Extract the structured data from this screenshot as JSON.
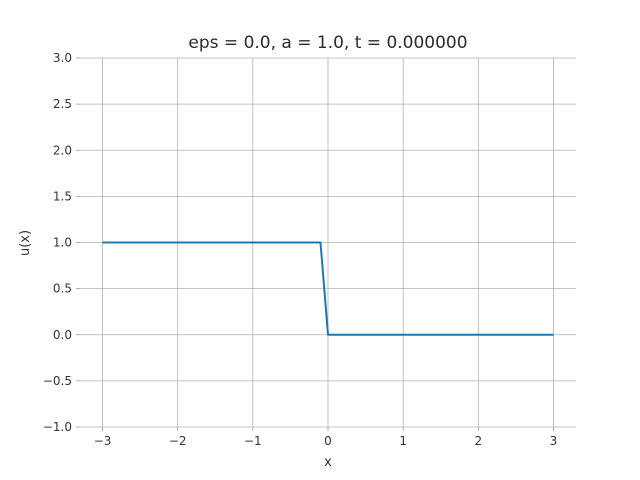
{
  "chart_data": {
    "type": "line",
    "title": "eps = 0.0, a = 1.0, t = 0.000000",
    "xlabel": "x",
    "ylabel": "u(x)",
    "xlim": [
      -3.3,
      3.3
    ],
    "ylim": [
      -1.0,
      3.0
    ],
    "xticks": [
      -3,
      -2,
      -1,
      0,
      1,
      2,
      3
    ],
    "xtick_labels": [
      "−3",
      "−2",
      "−1",
      "0",
      "1",
      "2",
      "3"
    ],
    "yticks": [
      -1.0,
      -0.5,
      0.0,
      0.5,
      1.0,
      1.5,
      2.0,
      2.5,
      3.0
    ],
    "ytick_labels": [
      "−1.0",
      "−0.5",
      "0.0",
      "0.5",
      "1.0",
      "1.5",
      "2.0",
      "2.5",
      "3.0"
    ],
    "grid": true,
    "series": [
      {
        "color": "#1f77b4",
        "x": [
          -3.0,
          -0.1,
          0.0,
          3.0
        ],
        "y": [
          1.0,
          1.0,
          0.0,
          0.0
        ]
      }
    ]
  }
}
